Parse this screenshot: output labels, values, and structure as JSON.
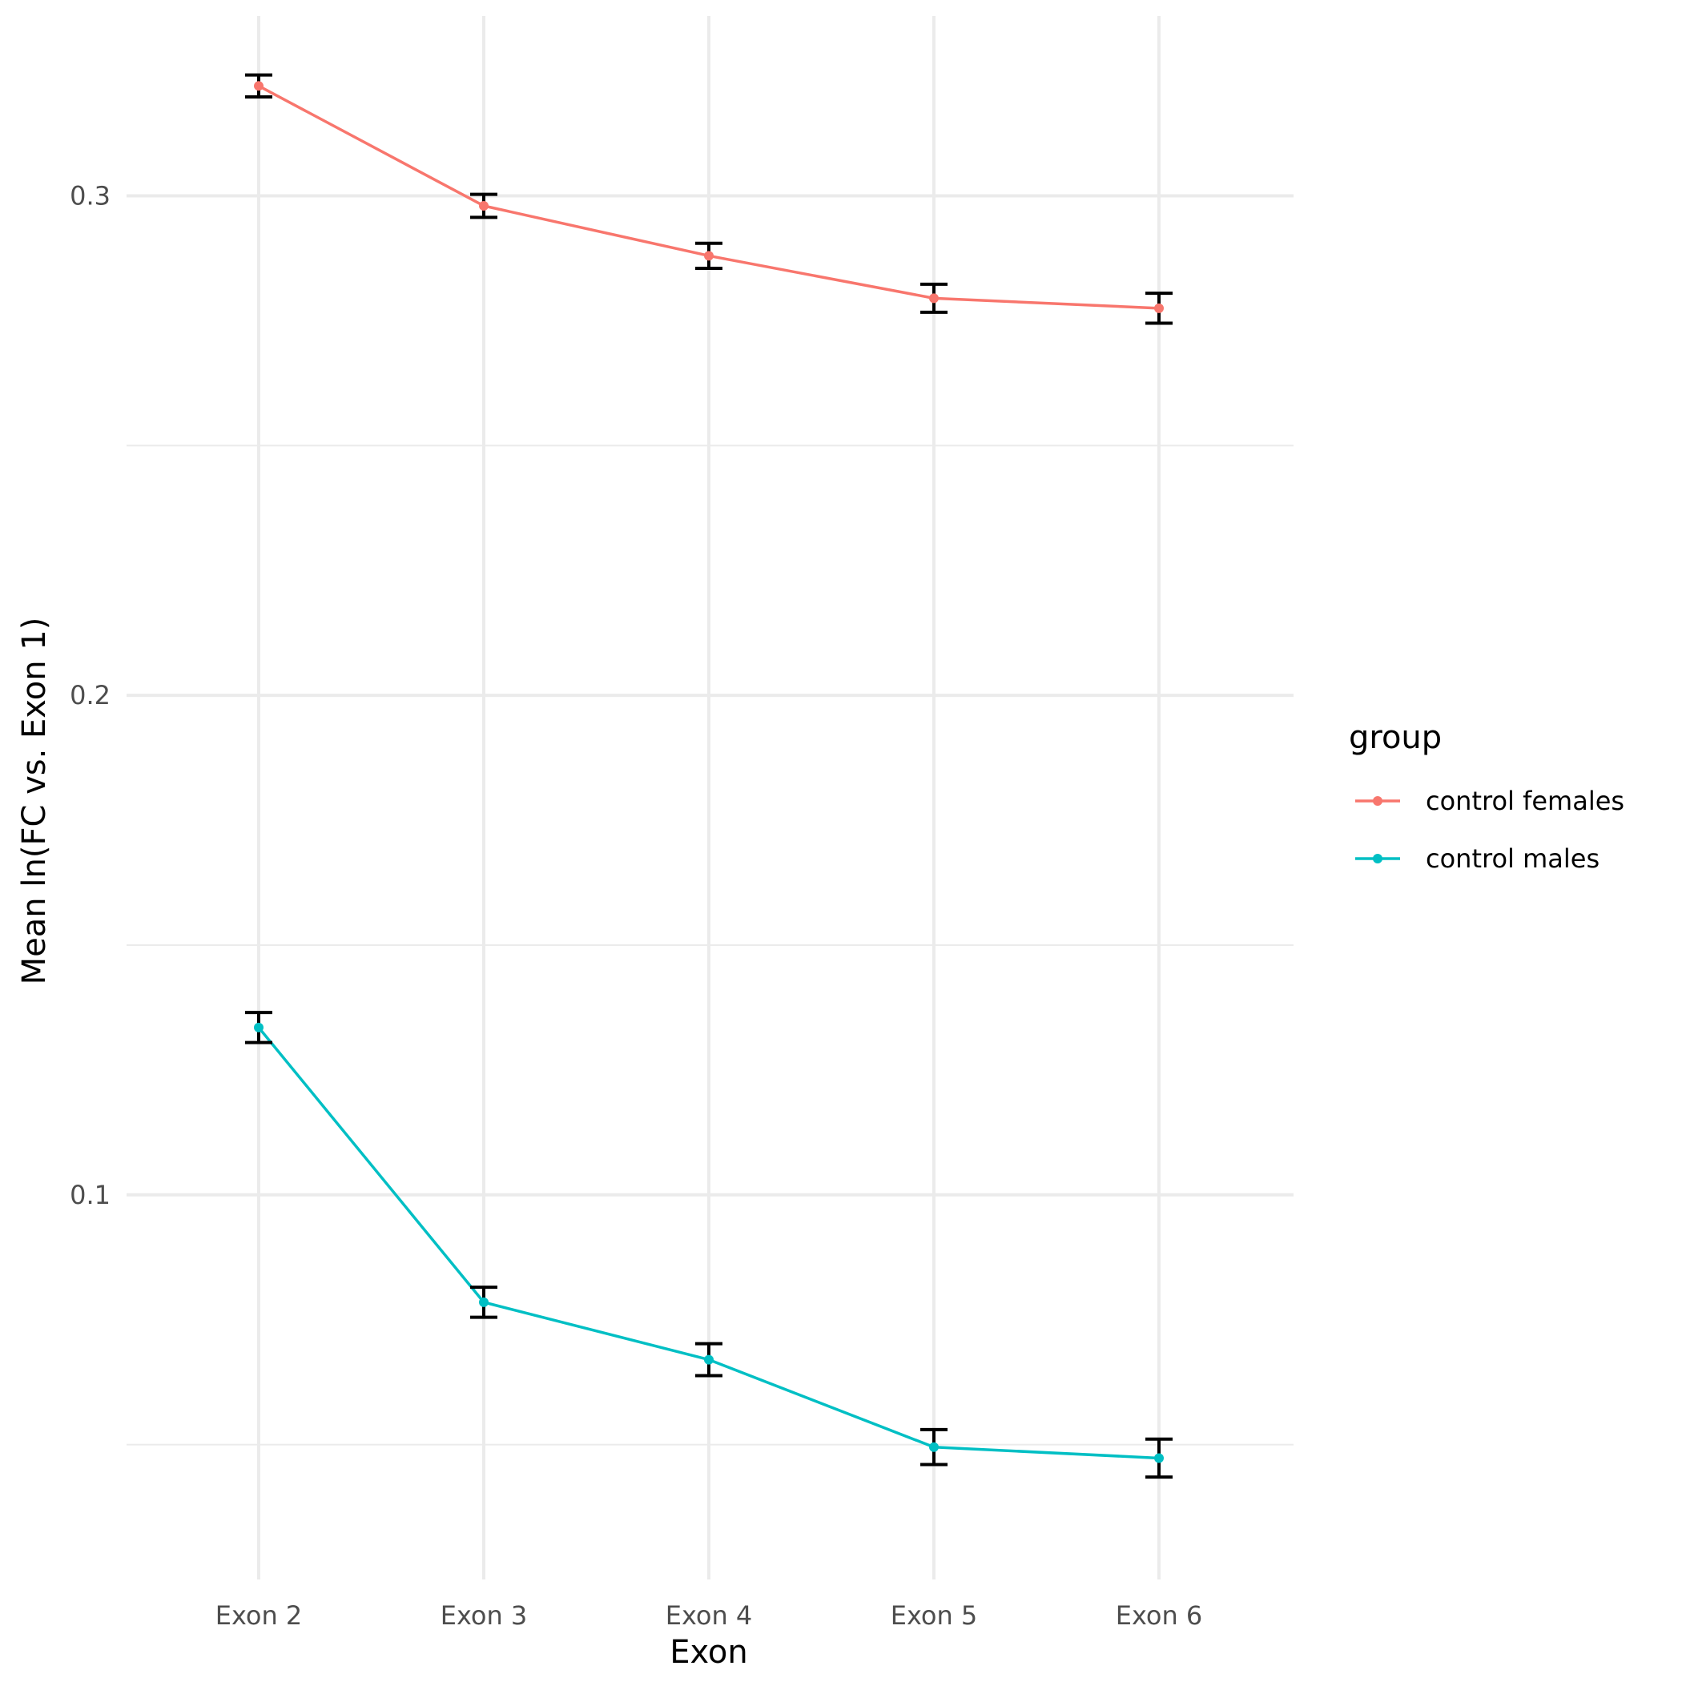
{
  "chart_data": {
    "type": "line",
    "title": "",
    "xlabel": "Exon",
    "ylabel": "Mean ln(FC vs. Exon 1)",
    "categories": [
      "Exon 2",
      "Exon 3",
      "Exon 4",
      "Exon 5",
      "Exon 6"
    ],
    "ylim": [
      0.023,
      0.336
    ],
    "yticks": [
      0.1,
      0.2,
      0.3
    ],
    "ytick_labels": [
      "0.1",
      "0.2",
      "0.3"
    ],
    "y_minor_grid": [
      0.05,
      0.15,
      0.25
    ],
    "grid": true,
    "legend": {
      "title": "group",
      "position": "right"
    },
    "error_bar_color": "#000000",
    "series": [
      {
        "name": "control females",
        "color": "#F8766D",
        "values": [
          0.322,
          0.298,
          0.288,
          0.2795,
          0.2775
        ],
        "error": [
          0.0022,
          0.0023,
          0.0025,
          0.0028,
          0.003
        ]
      },
      {
        "name": "control males",
        "color": "#00BFC4",
        "values": [
          0.1335,
          0.0785,
          0.067,
          0.0495,
          0.0473
        ],
        "error": [
          0.003,
          0.003,
          0.0032,
          0.0035,
          0.0038
        ]
      }
    ]
  }
}
